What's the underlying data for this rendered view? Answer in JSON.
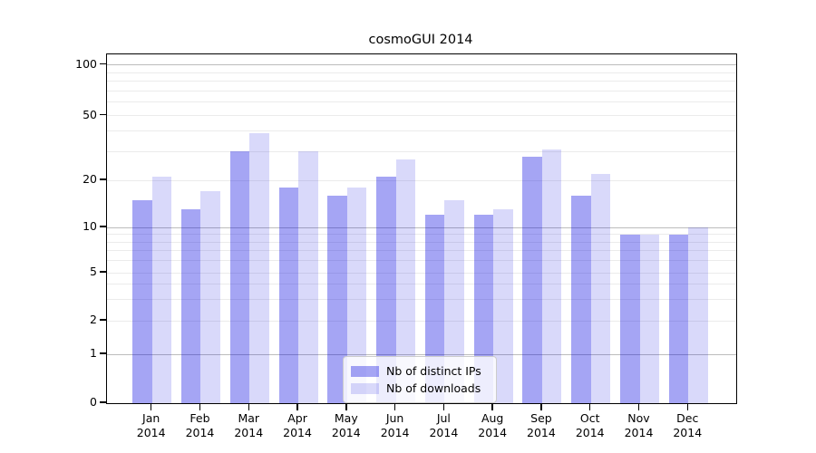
{
  "chart_data": {
    "type": "bar",
    "title": "cosmoGUI 2014",
    "xlabel": "",
    "ylabel": "",
    "scale": "log-like with 0 baseline",
    "ylim": [
      0,
      130
    ],
    "yticks": [
      0,
      1,
      2,
      5,
      10,
      20,
      50,
      100
    ],
    "grid": {
      "on": true,
      "major": [
        1,
        10,
        100
      ],
      "minor": [
        2,
        3,
        4,
        5,
        6,
        7,
        8,
        9,
        20,
        30,
        40,
        50,
        60,
        70,
        80,
        90
      ]
    },
    "categories": [
      "Jan",
      "Feb",
      "Mar",
      "Apr",
      "May",
      "Jun",
      "Jul",
      "Aug",
      "Sep",
      "Oct",
      "Nov",
      "Dec"
    ],
    "category_year": "2014",
    "series": [
      {
        "name": "Nb of distinct IPs",
        "color": "#a4a4f4",
        "values": [
          15,
          13,
          30,
          18,
          16,
          21,
          12,
          12,
          28,
          16,
          9,
          9
        ]
      },
      {
        "name": "Nb of downloads",
        "color": "#d9d9fa",
        "values": [
          21,
          17,
          39,
          30,
          18,
          27,
          15,
          13,
          31,
          22,
          9,
          10
        ]
      }
    ],
    "legend": {
      "position": "bottom-center-inside",
      "entries": [
        "Nb of distinct IPs",
        "Nb of downloads"
      ]
    },
    "colors": {
      "grid_major": "#bcbcbc",
      "grid_minor": "#ebebeb",
      "spine": "#000000",
      "background": "#ffffff"
    }
  }
}
